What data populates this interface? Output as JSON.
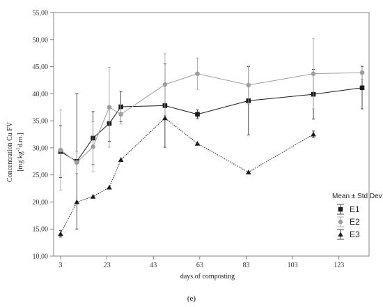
{
  "chart_data": {
    "type": "line",
    "xlabel": "days of composting",
    "ylabel_line1": "Concentration Cu FV",
    "ylabel_line2": "[mg kg",
    "ylabel_sup": "-1",
    "ylabel_rest": "d.m.]",
    "caption": "(e)",
    "xlim": [
      0,
      136
    ],
    "ylim": [
      10,
      55
    ],
    "x_ticks": [
      3,
      23,
      43,
      63,
      83,
      103,
      123
    ],
    "y_ticks": [
      "10,00",
      "15,00",
      "20,00",
      "25,00",
      "30,00",
      "35,00",
      "40,00",
      "45,00",
      "50,00",
      "55,00"
    ],
    "y_tick_values": [
      10,
      15,
      20,
      25,
      30,
      35,
      40,
      45,
      50,
      55
    ],
    "legend": {
      "title": "Mean ± Std Dev",
      "placement": "bottom-right"
    },
    "series": [
      {
        "name": "E1",
        "color": "#1a1a1a",
        "marker": "square",
        "line": "solid",
        "x": [
          3,
          10,
          17,
          24,
          29,
          48,
          62,
          84,
          112,
          133
        ],
        "y": [
          29.3,
          27.5,
          31.8,
          34.5,
          37.6,
          37.8,
          36.2,
          38.7,
          39.9,
          41.1
        ],
        "err": [
          4.8,
          12.5,
          4.9,
          3.3,
          2.8,
          7.7,
          0.8,
          6.3,
          4.6,
          3.9
        ]
      },
      {
        "name": "E2",
        "color": "#9e9e9e",
        "marker": "circle",
        "line": "solid",
        "x": [
          3,
          10,
          17,
          24,
          29,
          48,
          62,
          84,
          112,
          133
        ],
        "y": [
          29.6,
          27.3,
          30.2,
          37.5,
          36.2,
          41.7,
          43.7,
          41.6,
          43.7,
          43.9
        ],
        "err": [
          7.4,
          2.0,
          4.6,
          7.4,
          1.8,
          5.7,
          2.9,
          3.5,
          6.5,
          1.2
        ]
      },
      {
        "name": "E3",
        "color": "#1a1a1a",
        "marker": "triangle",
        "line": "dotted",
        "x": [
          3,
          10,
          17,
          24,
          29,
          48,
          62,
          84,
          112
        ],
        "y": [
          14.1,
          20.0,
          21.0,
          22.7,
          27.8,
          35.5,
          30.8,
          25.5,
          32.5
        ],
        "err": [
          0.6,
          0,
          0,
          0,
          0,
          0,
          0,
          0,
          0.6
        ]
      }
    ]
  }
}
